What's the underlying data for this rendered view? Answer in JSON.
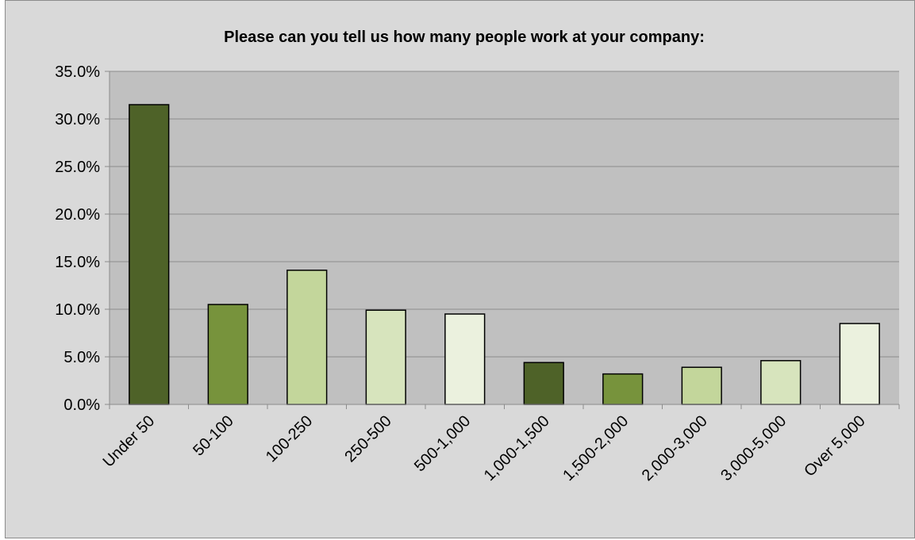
{
  "chart_data": {
    "type": "bar",
    "title": "Please can you tell us how many people work at your company:",
    "xlabel": "",
    "ylabel": "",
    "categories": [
      "Under 50",
      "50-100",
      "100-250",
      "250-500",
      "500-1,000",
      "1,000-1,500",
      "1,500-2,000",
      "2,000-3,000",
      "3,000-5,000",
      "Over 5,000"
    ],
    "values": [
      31.5,
      10.5,
      14.1,
      9.9,
      9.5,
      4.4,
      3.2,
      3.9,
      4.6,
      8.5
    ],
    "ylim": [
      0,
      35
    ],
    "yticks": [
      "0.0%",
      "5.0%",
      "10.0%",
      "15.0%",
      "20.0%",
      "25.0%",
      "30.0%",
      "35.0%"
    ],
    "grid": true,
    "legend": "none",
    "bar_colors": [
      "#4e6228",
      "#77933c",
      "#c3d69b",
      "#d7e4bd",
      "#ebf1de",
      "#4e6228",
      "#77933c",
      "#c3d69b",
      "#d7e4bd",
      "#ebf1de"
    ],
    "plot_background": "#c0c0c0",
    "chart_background": "#d9d9d9"
  }
}
